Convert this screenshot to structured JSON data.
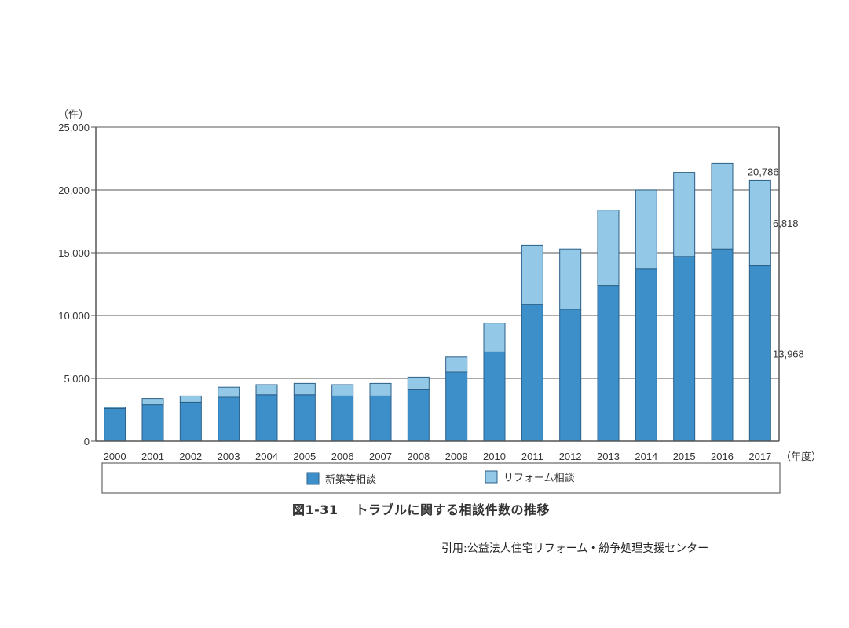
{
  "chart_data": {
    "type": "bar",
    "stacked": true,
    "unit_label": "（件）",
    "x_unit_label": "（年度）",
    "categories": [
      "2000",
      "2001",
      "2002",
      "2003",
      "2004",
      "2005",
      "2006",
      "2007",
      "2008",
      "2009",
      "2010",
      "2011",
      "2012",
      "2013",
      "2014",
      "2015",
      "2016",
      "2017"
    ],
    "series": [
      {
        "name": "新築等相談",
        "color": "#3d8fc9",
        "values": [
          2600,
          2900,
          3100,
          3500,
          3700,
          3700,
          3600,
          3600,
          4100,
          5500,
          7100,
          10900,
          10500,
          12400,
          13700,
          14700,
          15300,
          13968
        ]
      },
      {
        "name": "リフォーム相談",
        "color": "#93c8e6",
        "values": [
          100,
          500,
          500,
          800,
          800,
          900,
          900,
          1000,
          1000,
          1200,
          2300,
          4700,
          4800,
          6000,
          6300,
          6700,
          6800,
          6818
        ]
      }
    ],
    "ylim": [
      0,
      25000
    ],
    "yticks": [
      0,
      5000,
      10000,
      15000,
      20000,
      25000
    ],
    "ytick_labels": [
      "0",
      "5,000",
      "10,000",
      "15,000",
      "20,000",
      "25,000"
    ],
    "annotations": {
      "total_2017": "20,786",
      "reform_2017": "6,818",
      "new_2017": "13,968"
    },
    "title": "図1-31　トラブルに関する相談件数の推移",
    "legend_position": "bottom"
  },
  "caption": {
    "figure_number": "図1-31",
    "text": "トラブルに関する相談件数の推移"
  },
  "source": "引用:公益法人住宅リフォーム・紛争処理支援センター"
}
